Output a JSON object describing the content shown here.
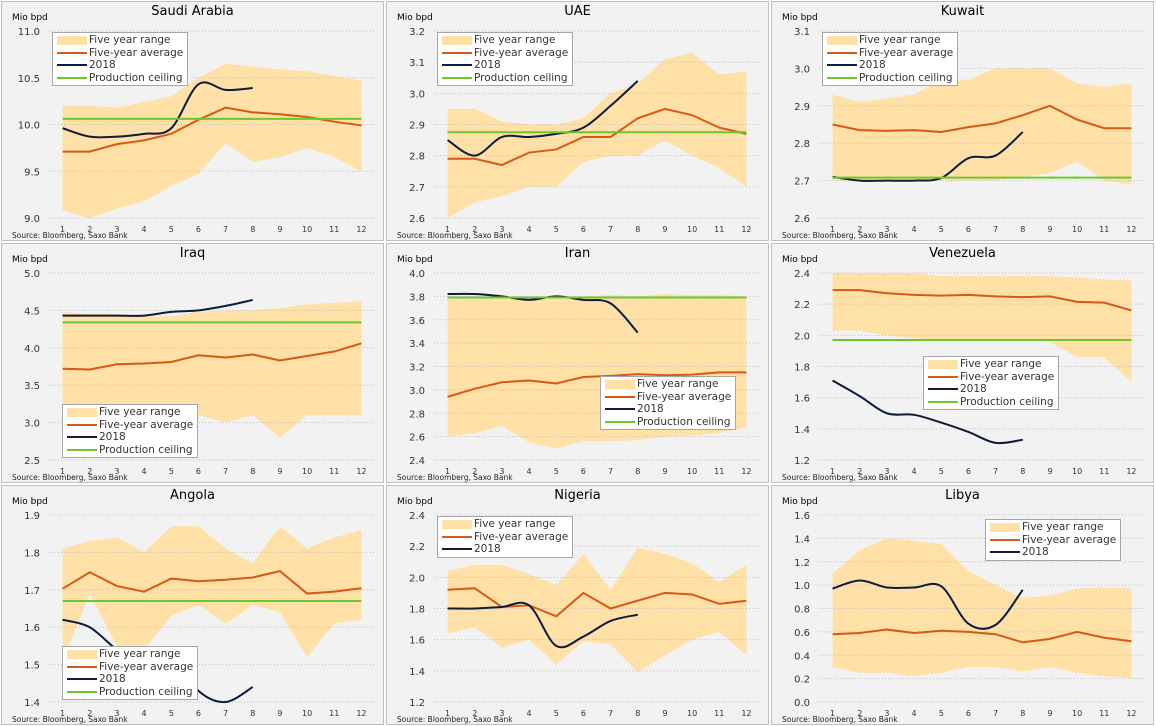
{
  "source": "Source:  Bloomberg, Saxo Bank",
  "y_unit": "Mio bpd",
  "legend_labels": {
    "range": "Five year range",
    "avg": "Five-year average",
    "y2018": "2018",
    "ceiling": "Production ceiling"
  },
  "colors": {
    "range": "#ffe0a6",
    "avg": "#d65a13",
    "y2018": "#0d1b3e",
    "ceiling": "#6cc72c",
    "panel_bg": "#f2f2f2",
    "grid": "#bfbfbf"
  },
  "chart_data": [
    {
      "type": "line",
      "title": "Saudi Arabia",
      "ylabel": "Mio bpd",
      "ylim": [
        9.0,
        11.0
      ],
      "yticks": [
        9.0,
        9.5,
        10.0,
        10.5,
        11.0
      ],
      "x": [
        1,
        2,
        3,
        4,
        5,
        6,
        7,
        8,
        9,
        10,
        11,
        12
      ],
      "legend": "top-left",
      "series": [
        {
          "name": "Five year range",
          "low": [
            9.08,
            9.0,
            9.1,
            9.18,
            9.34,
            9.47,
            9.8,
            9.6,
            9.65,
            9.75,
            9.65,
            9.5
          ],
          "high": [
            10.2,
            10.2,
            10.18,
            10.24,
            10.3,
            10.5,
            10.65,
            10.62,
            10.59,
            10.57,
            10.52,
            10.47
          ]
        },
        {
          "name": "Five-year average",
          "values": [
            9.71,
            9.71,
            9.79,
            9.83,
            9.9,
            10.05,
            10.18,
            10.13,
            10.11,
            10.08,
            10.03,
            9.99
          ]
        },
        {
          "name": "2018",
          "values": [
            9.96,
            9.87,
            9.87,
            9.9,
            9.96,
            10.43,
            10.37,
            10.39
          ]
        },
        {
          "name": "Production ceiling",
          "values": [
            10.06,
            10.06,
            10.06,
            10.06,
            10.06,
            10.06,
            10.06,
            10.06,
            10.06,
            10.06,
            10.06,
            10.06
          ]
        }
      ]
    },
    {
      "type": "line",
      "title": "UAE",
      "ylabel": "Mio bpd",
      "ylim": [
        2.6,
        3.2
      ],
      "yticks": [
        2.6,
        2.7,
        2.8,
        2.9,
        3.0,
        3.1,
        3.2
      ],
      "x": [
        1,
        2,
        3,
        4,
        5,
        6,
        7,
        8,
        9,
        10,
        11,
        12
      ],
      "legend": "top-left",
      "series": [
        {
          "name": "Five year range",
          "low": [
            2.6,
            2.65,
            2.67,
            2.7,
            2.7,
            2.78,
            2.8,
            2.8,
            2.85,
            2.8,
            2.76,
            2.7
          ],
          "high": [
            2.95,
            2.95,
            2.91,
            2.9,
            2.9,
            2.92,
            3.0,
            3.03,
            3.11,
            3.13,
            3.06,
            3.07
          ]
        },
        {
          "name": "Five-year average",
          "values": [
            2.79,
            2.79,
            2.77,
            2.81,
            2.82,
            2.86,
            2.86,
            2.92,
            2.95,
            2.93,
            2.89,
            2.87
          ]
        },
        {
          "name": "2018",
          "values": [
            2.85,
            2.8,
            2.86,
            2.86,
            2.87,
            2.89,
            2.96,
            3.04
          ]
        },
        {
          "name": "Production ceiling",
          "values": [
            2.875,
            2.875,
            2.875,
            2.875,
            2.875,
            2.875,
            2.875,
            2.875,
            2.875,
            2.875,
            2.875,
            2.875
          ]
        }
      ]
    },
    {
      "type": "line",
      "title": "Kuwait",
      "ylabel": "Mio bpd",
      "ylim": [
        2.6,
        3.1
      ],
      "yticks": [
        2.6,
        2.7,
        2.8,
        2.9,
        3.0,
        3.1
      ],
      "x": [
        1,
        2,
        3,
        4,
        5,
        6,
        7,
        8,
        9,
        10,
        11,
        12
      ],
      "legend": "top-left",
      "series": [
        {
          "name": "Five year range",
          "low": [
            2.7,
            2.7,
            2.7,
            2.7,
            2.7,
            2.7,
            2.7,
            2.71,
            2.72,
            2.75,
            2.7,
            2.69
          ],
          "high": [
            2.93,
            2.91,
            2.92,
            2.93,
            2.97,
            2.97,
            3.0,
            3.0,
            3.0,
            2.96,
            2.95,
            2.96
          ]
        },
        {
          "name": "Five-year average",
          "values": [
            2.85,
            2.835,
            2.833,
            2.835,
            2.83,
            2.843,
            2.853,
            2.875,
            2.9,
            2.863,
            2.84,
            2.84
          ]
        },
        {
          "name": "2018",
          "values": [
            2.71,
            2.7,
            2.7,
            2.7,
            2.707,
            2.76,
            2.767,
            2.83
          ]
        },
        {
          "name": "Production ceiling",
          "values": [
            2.708,
            2.708,
            2.708,
            2.708,
            2.708,
            2.708,
            2.708,
            2.708,
            2.708,
            2.708,
            2.708,
            2.708
          ]
        }
      ]
    },
    {
      "type": "line",
      "title": "Iraq",
      "ylabel": "Mio bpd",
      "ylim": [
        2.5,
        5.0
      ],
      "yticks": [
        2.5,
        3.0,
        3.5,
        4.0,
        4.5,
        5.0
      ],
      "x": [
        1,
        2,
        3,
        4,
        5,
        6,
        7,
        8,
        9,
        10,
        11,
        12
      ],
      "legend": "bottom-left",
      "series": [
        {
          "name": "Five year range",
          "low": [
            3.05,
            3.1,
            3.1,
            3.1,
            3.1,
            3.1,
            3.0,
            3.1,
            2.8,
            3.1,
            3.1,
            3.1
          ],
          "high": [
            4.48,
            4.45,
            4.45,
            4.42,
            4.42,
            4.48,
            4.5,
            4.5,
            4.53,
            4.58,
            4.6,
            4.62
          ]
        },
        {
          "name": "Five-year average",
          "values": [
            3.72,
            3.71,
            3.78,
            3.79,
            3.81,
            3.9,
            3.87,
            3.91,
            3.83,
            3.89,
            3.95,
            4.06
          ]
        },
        {
          "name": "2018",
          "values": [
            4.43,
            4.43,
            4.43,
            4.43,
            4.48,
            4.5,
            4.56,
            4.64
          ]
        },
        {
          "name": "Production ceiling",
          "values": [
            4.34,
            4.34,
            4.34,
            4.34,
            4.34,
            4.34,
            4.34,
            4.34,
            4.34,
            4.34,
            4.34,
            4.34
          ]
        }
      ]
    },
    {
      "type": "line",
      "title": "Iran",
      "ylabel": "Mio bpd",
      "ylim": [
        2.4,
        4.0
      ],
      "yticks": [
        2.4,
        2.6,
        2.8,
        3.0,
        3.2,
        3.4,
        3.6,
        3.8,
        4.0
      ],
      "x": [
        1,
        2,
        3,
        4,
        5,
        6,
        7,
        8,
        9,
        10,
        11,
        12
      ],
      "legend": "bottom-right",
      "series": [
        {
          "name": "Five year range",
          "low": [
            2.6,
            2.63,
            2.69,
            2.55,
            2.5,
            2.56,
            2.56,
            2.57,
            2.6,
            2.61,
            2.63,
            2.68
          ],
          "high": [
            3.8,
            3.8,
            3.8,
            3.8,
            3.8,
            3.8,
            3.81,
            3.8,
            3.82,
            3.81,
            3.81,
            3.8
          ]
        },
        {
          "name": "Five-year average",
          "values": [
            2.94,
            3.01,
            3.065,
            3.08,
            3.055,
            3.11,
            3.12,
            3.135,
            3.125,
            3.13,
            3.15,
            3.15
          ]
        },
        {
          "name": "2018",
          "values": [
            3.82,
            3.82,
            3.8,
            3.77,
            3.8,
            3.77,
            3.74,
            3.49
          ]
        },
        {
          "name": "Production ceiling",
          "values": [
            3.79,
            3.79,
            3.79,
            3.79,
            3.79,
            3.79,
            3.79,
            3.79,
            3.79,
            3.79,
            3.79,
            3.79
          ]
        }
      ]
    },
    {
      "type": "line",
      "title": "Venezuela",
      "ylabel": "Mio bpd",
      "ylim": [
        1.2,
        2.4
      ],
      "yticks": [
        1.2,
        1.4,
        1.6,
        1.8,
        2.0,
        2.2,
        2.4
      ],
      "x": [
        1,
        2,
        3,
        4,
        5,
        6,
        7,
        8,
        9,
        10,
        11,
        12
      ],
      "legend": "center",
      "series": [
        {
          "name": "Five year range",
          "low": [
            2.03,
            2.03,
            2.0,
            1.98,
            1.97,
            1.97,
            1.97,
            1.97,
            1.96,
            1.86,
            1.86,
            1.7
          ],
          "high": [
            2.4,
            2.4,
            2.4,
            2.4,
            2.38,
            2.38,
            2.38,
            2.38,
            2.38,
            2.37,
            2.36,
            2.35
          ]
        },
        {
          "name": "Five-year average",
          "values": [
            2.29,
            2.29,
            2.27,
            2.26,
            2.255,
            2.26,
            2.25,
            2.245,
            2.25,
            2.215,
            2.21,
            2.16
          ]
        },
        {
          "name": "2018",
          "values": [
            1.71,
            1.61,
            1.5,
            1.49,
            1.44,
            1.38,
            1.31,
            1.33
          ]
        },
        {
          "name": "Production ceiling",
          "values": [
            1.97,
            1.97,
            1.97,
            1.97,
            1.97,
            1.97,
            1.97,
            1.97,
            1.97,
            1.97,
            1.97,
            1.97
          ]
        }
      ]
    },
    {
      "type": "line",
      "title": "Angola",
      "ylabel": "Mio bpd",
      "ylim": [
        1.4,
        1.9
      ],
      "yticks": [
        1.4,
        1.5,
        1.6,
        1.7,
        1.8,
        1.9
      ],
      "x": [
        1,
        2,
        3,
        4,
        5,
        6,
        7,
        8,
        9,
        10,
        11,
        12
      ],
      "legend": "bottom-left",
      "series": [
        {
          "name": "Five year range",
          "low": [
            1.51,
            1.69,
            1.55,
            1.54,
            1.63,
            1.66,
            1.61,
            1.66,
            1.64,
            1.52,
            1.61,
            1.62
          ],
          "high": [
            1.81,
            1.83,
            1.84,
            1.8,
            1.87,
            1.87,
            1.81,
            1.77,
            1.87,
            1.81,
            1.84,
            1.86
          ]
        },
        {
          "name": "Five-year average",
          "values": [
            1.703,
            1.747,
            1.71,
            1.695,
            1.73,
            1.723,
            1.727,
            1.733,
            1.75,
            1.69,
            1.695,
            1.704
          ]
        },
        {
          "name": "2018",
          "values": [
            1.62,
            1.6,
            1.54,
            1.5,
            1.53,
            1.43,
            1.4,
            1.44
          ]
        },
        {
          "name": "Production ceiling",
          "values": [
            1.67,
            1.67,
            1.67,
            1.67,
            1.67,
            1.67,
            1.67,
            1.67,
            1.67,
            1.67,
            1.67,
            1.67
          ]
        }
      ]
    },
    {
      "type": "line",
      "title": "Nigeria",
      "ylabel": "Mio bpd",
      "ylim": [
        1.2,
        2.4
      ],
      "yticks": [
        1.2,
        1.4,
        1.6,
        1.8,
        2.0,
        2.2,
        2.4
      ],
      "x": [
        1,
        2,
        3,
        4,
        5,
        6,
        7,
        8,
        9,
        10,
        11,
        12
      ],
      "legend": "top-left",
      "series": [
        {
          "name": "Five year range",
          "low": [
            1.64,
            1.68,
            1.55,
            1.6,
            1.44,
            1.59,
            1.57,
            1.39,
            1.5,
            1.6,
            1.65,
            1.5
          ],
          "high": [
            2.04,
            2.08,
            2.08,
            2.02,
            1.95,
            2.15,
            1.92,
            2.19,
            2.15,
            2.09,
            1.97,
            2.08
          ]
        },
        {
          "name": "Five-year average",
          "values": [
            1.92,
            1.93,
            1.81,
            1.82,
            1.75,
            1.9,
            1.8,
            1.85,
            1.9,
            1.89,
            1.83,
            1.85
          ]
        },
        {
          "name": "2018",
          "values": [
            1.8,
            1.8,
            1.81,
            1.82,
            1.56,
            1.62,
            1.72,
            1.76
          ]
        }
      ]
    },
    {
      "type": "line",
      "title": "Libya",
      "ylabel": "Mio bpd",
      "ylim": [
        0.0,
        1.6
      ],
      "yticks": [
        0.0,
        0.2,
        0.4,
        0.6,
        0.8,
        1.0,
        1.2,
        1.4,
        1.6
      ],
      "x": [
        1,
        2,
        3,
        4,
        5,
        6,
        7,
        8,
        9,
        10,
        11,
        12
      ],
      "legend": "top-right",
      "series": [
        {
          "name": "Five year range",
          "low": [
            0.3,
            0.25,
            0.25,
            0.22,
            0.25,
            0.3,
            0.3,
            0.26,
            0.3,
            0.25,
            0.22,
            0.2
          ],
          "high": [
            1.1,
            1.3,
            1.4,
            1.38,
            1.35,
            1.12,
            1.0,
            0.89,
            0.91,
            0.97,
            0.98,
            0.97
          ]
        },
        {
          "name": "Five-year average",
          "values": [
            0.58,
            0.59,
            0.62,
            0.59,
            0.61,
            0.6,
            0.58,
            0.51,
            0.54,
            0.6,
            0.55,
            0.52
          ]
        },
        {
          "name": "2018",
          "values": [
            0.97,
            1.04,
            0.98,
            0.98,
            0.99,
            0.67,
            0.66,
            0.96
          ]
        }
      ]
    }
  ]
}
